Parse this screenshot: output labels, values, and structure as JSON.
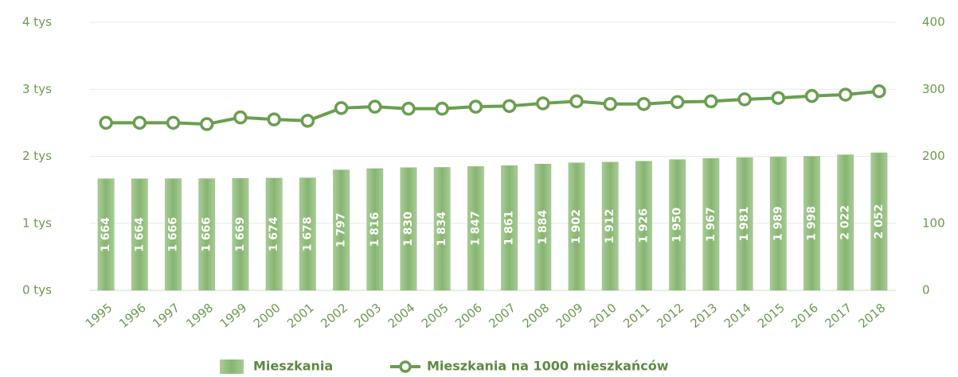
{
  "chart_data": {
    "type": "bar",
    "categories": [
      "1995",
      "1996",
      "1997",
      "1998",
      "1999",
      "2000",
      "2001",
      "2002",
      "2003",
      "2004",
      "2005",
      "2006",
      "2007",
      "2008",
      "2009",
      "2010",
      "2011",
      "2012",
      "2013",
      "2014",
      "2015",
      "2016",
      "2017",
      "2018"
    ],
    "series": [
      {
        "name": "Mieszkania",
        "type": "bar",
        "color": "#8cb878",
        "values": [
          1664,
          1664,
          1666,
          1666,
          1669,
          1674,
          1678,
          1797,
          1816,
          1830,
          1834,
          1847,
          1861,
          1884,
          1902,
          1912,
          1926,
          1950,
          1967,
          1981,
          1989,
          1998,
          2022,
          2052
        ],
        "value_labels": [
          "1 664",
          "1 664",
          "1 666",
          "1 666",
          "1 669",
          "1 674",
          "1 678",
          "1 797",
          "1 816",
          "1 830",
          "1 834",
          "1 847",
          "1 861",
          "1 884",
          "1 902",
          "1 912",
          "1 926",
          "1 950",
          "1 967",
          "1 981",
          "1 989",
          "1 998",
          "2 022",
          "2 052"
        ]
      },
      {
        "name": "Mieszkania na 1000 mieszkańców",
        "type": "line",
        "axis": "y2",
        "color": "#6a9e4f",
        "values": [
          250,
          250,
          250,
          248,
          258,
          255,
          253,
          272,
          274,
          271,
          271,
          274,
          275,
          279,
          282,
          278,
          278,
          281,
          282,
          285,
          287,
          290,
          292,
          297
        ]
      }
    ],
    "ylim": [
      0,
      4000
    ],
    "yticks": [
      {
        "value": 0,
        "label": "0 tys"
      },
      {
        "value": 1000,
        "label": "1 tys"
      },
      {
        "value": 2000,
        "label": "2 tys"
      },
      {
        "value": 3000,
        "label": "3 tys"
      },
      {
        "value": 4000,
        "label": "4 tys"
      }
    ],
    "y2lim": [
      0,
      400
    ],
    "y2ticks": [
      0,
      100,
      200,
      300,
      400
    ],
    "grid": true,
    "legend": "bottom"
  }
}
